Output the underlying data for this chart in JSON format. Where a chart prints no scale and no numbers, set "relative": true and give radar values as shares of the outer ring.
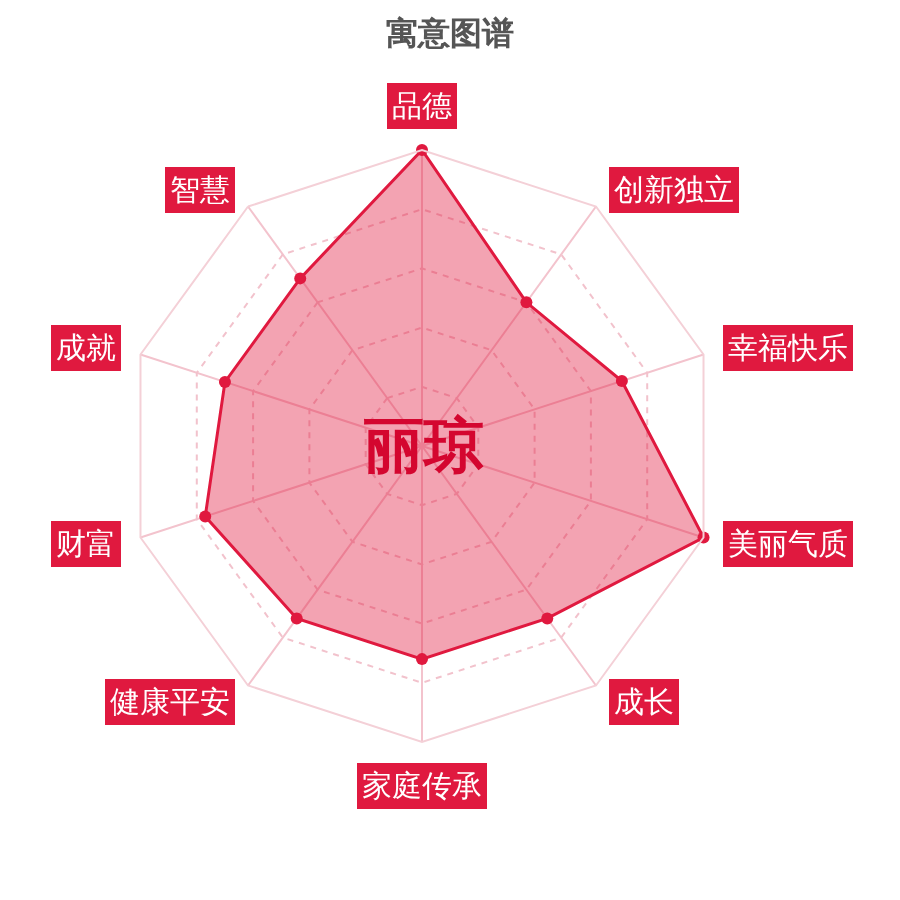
{
  "chart_data": {
    "type": "radar",
    "title": "寓意图谱",
    "categories": [
      "品德",
      "创新独立",
      "幸福快乐",
      "美丽气质",
      "成长",
      "家庭传承",
      "健康平安",
      "财富",
      "成就",
      "智慧"
    ],
    "relative": true,
    "series": [
      {
        "color": "#e0193f",
        "values": [
          1.0,
          0.6,
          0.71,
          1.0,
          0.72,
          0.72,
          0.72,
          0.77,
          0.7,
          0.7
        ]
      }
    ],
    "annotations": [
      "丽琼"
    ],
    "grid": true,
    "marker": "circle",
    "line_style": "solid"
  }
}
